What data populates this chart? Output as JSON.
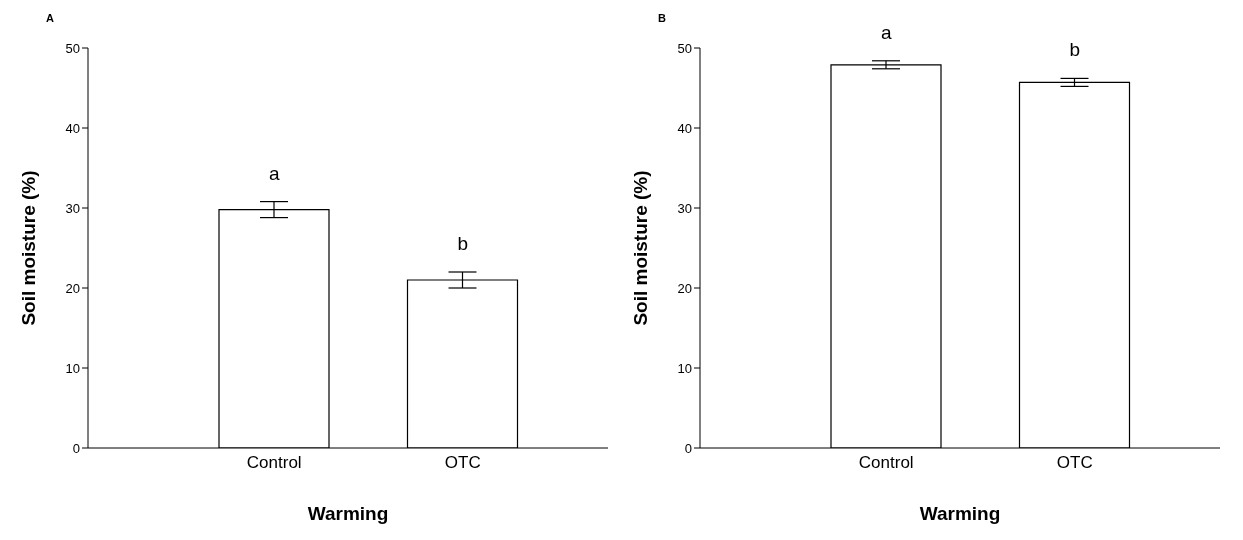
{
  "chart_data": [
    {
      "type": "bar",
      "title": "A",
      "xlabel": "Warming",
      "ylabel": "Soil moisture (%)",
      "categories": [
        "Control",
        "OTC"
      ],
      "values": [
        29.8,
        21.0
      ],
      "errors": [
        1.0,
        1.0
      ],
      "color": "#ffffff",
      "ylim": [
        0,
        50
      ],
      "yticks": [
        0,
        10,
        20,
        30,
        40,
        50
      ],
      "grid": false,
      "annotations": [
        "a",
        "b"
      ]
    },
    {
      "type": "bar",
      "title": "B",
      "xlabel": "Warming",
      "ylabel": "Soil moisture (%)",
      "categories": [
        "Control",
        "OTC"
      ],
      "values": [
        47.9,
        45.7
      ],
      "errors": [
        0.5,
        0.5
      ],
      "color": "#ffffff",
      "ylim": [
        0,
        50
      ],
      "yticks": [
        0,
        10,
        20,
        30,
        40,
        50
      ],
      "grid": false,
      "annotations": [
        "a",
        "b"
      ]
    }
  ]
}
